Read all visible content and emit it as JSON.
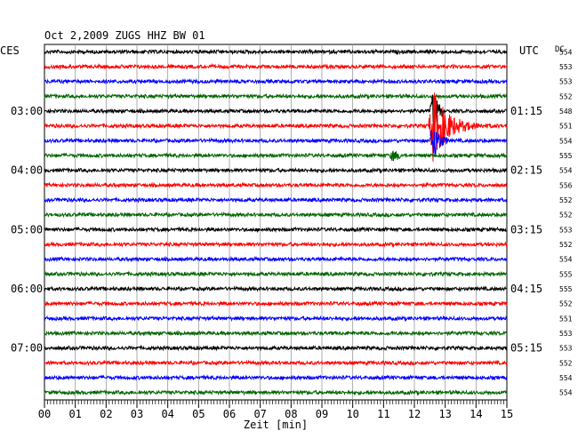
{
  "chart_data": {
    "type": "line",
    "title": "Oct 2,2009   ZUGS HHZ BW 01",
    "left_label": "CES",
    "right_label": "UTC",
    "dc_label": "DC",
    "xlabel": "Zeit [min]",
    "x_ticks": [
      "00",
      "01",
      "02",
      "03",
      "04",
      "05",
      "06",
      "07",
      "08",
      "09",
      "10",
      "11",
      "12",
      "13",
      "14",
      "15"
    ],
    "xlim": [
      0,
      15
    ],
    "trace_count": 24,
    "trace_colors": [
      "#000000",
      "#ff0000",
      "#0000ff",
      "#006400"
    ],
    "left_time_labels": [
      {
        "trace": 4,
        "label": "03:00"
      },
      {
        "trace": 8,
        "label": "04:00"
      },
      {
        "trace": 12,
        "label": "05:00"
      },
      {
        "trace": 16,
        "label": "06:00"
      },
      {
        "trace": 20,
        "label": "07:00"
      }
    ],
    "right_time_labels": [
      {
        "trace": 0,
        "label": ""
      },
      {
        "trace": 4,
        "label": "01:15"
      },
      {
        "trace": 8,
        "label": "02:15"
      },
      {
        "trace": 12,
        "label": "03:15"
      },
      {
        "trace": 16,
        "label": "04:15"
      },
      {
        "trace": 20,
        "label": "05:15"
      }
    ],
    "dc_values": [
      "554",
      "553",
      "553",
      "552",
      "548",
      "551",
      "554",
      "555",
      "554",
      "556",
      "552",
      "552",
      "553",
      "552",
      "554",
      "555",
      "555",
      "552",
      "551",
      "553",
      "553",
      "552",
      "554",
      "554"
    ],
    "events": [
      {
        "trace": 5,
        "start_min": 12.45,
        "peak_min": 12.6,
        "end_min": 15.0,
        "amplitude": "large"
      },
      {
        "trace": 6,
        "start_min": 12.5,
        "peak_min": 12.6,
        "end_min": 13.1,
        "amplitude": "medium"
      },
      {
        "trace": 4,
        "start_min": 12.5,
        "peak_min": 12.6,
        "end_min": 12.9,
        "amplitude": "medium"
      },
      {
        "trace": 7,
        "start_min": 11.2,
        "peak_min": 11.3,
        "end_min": 11.6,
        "amplitude": "small"
      }
    ],
    "grid": true
  }
}
